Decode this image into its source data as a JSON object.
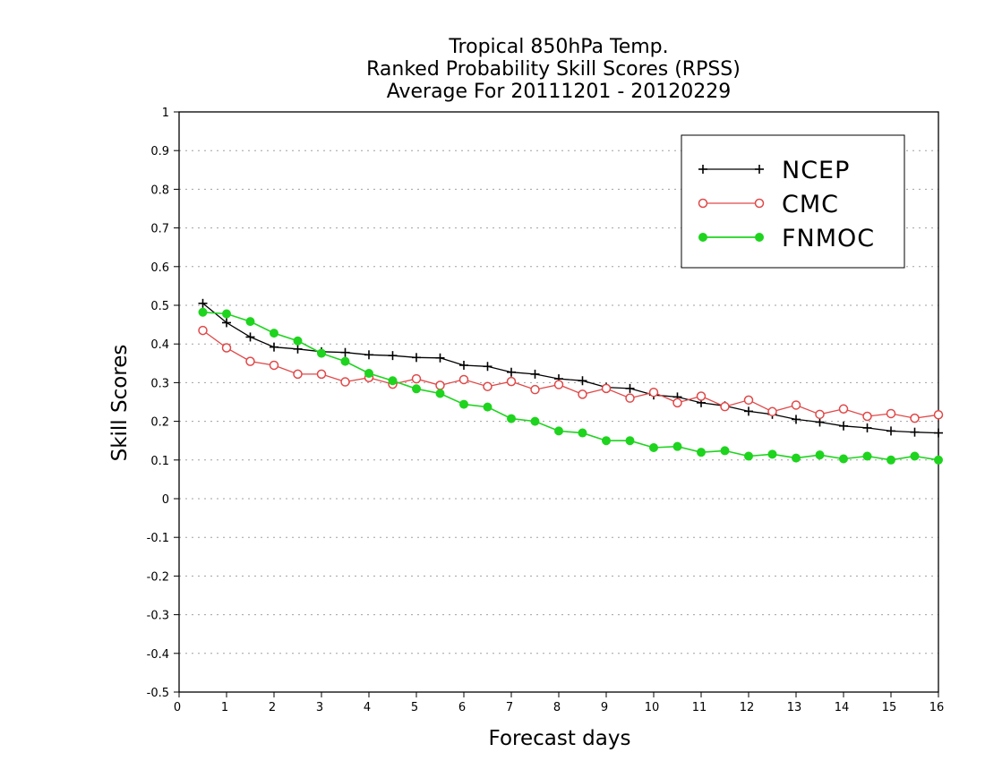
{
  "chart_data": {
    "type": "line",
    "title": [
      "Tropical 850hPa Temp.",
      "Ranked Probability Skill Scores (RPSS)",
      "Average For 20111201 - 20120229"
    ],
    "xlabel": "Forecast days",
    "ylabel": "Skill Scores",
    "xlim": [
      0,
      16
    ],
    "ylim": [
      -0.5,
      1
    ],
    "x_ticks": [
      0,
      1,
      2,
      3,
      4,
      5,
      6,
      7,
      8,
      9,
      10,
      11,
      12,
      13,
      14,
      15,
      16
    ],
    "y_ticks": [
      "1",
      "0.9",
      "0.8",
      "0.7",
      "0.6",
      "0.5",
      "0.4",
      "0.3",
      "0.2",
      "0.1",
      "0",
      "-0.1",
      "-0.2",
      "-0.3",
      "-0.4",
      "-0.5"
    ],
    "grid": true,
    "legend_position": "top-right",
    "x": [
      0.5,
      1,
      1.5,
      2,
      2.5,
      3,
      3.5,
      4,
      4.5,
      5,
      5.5,
      6,
      6.5,
      7,
      7.5,
      8,
      8.5,
      9,
      9.5,
      10,
      10.5,
      11,
      11.5,
      12,
      12.5,
      13,
      13.5,
      14,
      14.5,
      15,
      15.5,
      16
    ],
    "series": [
      {
        "name": "NCEP",
        "color": "#000000",
        "marker": "plus",
        "values": [
          0.505,
          0.455,
          0.418,
          0.392,
          0.387,
          0.38,
          0.378,
          0.372,
          0.37,
          0.365,
          0.364,
          0.345,
          0.342,
          0.327,
          0.322,
          0.31,
          0.305,
          0.288,
          0.285,
          0.268,
          0.263,
          0.248,
          0.24,
          0.226,
          0.218,
          0.205,
          0.198,
          0.188,
          0.183,
          0.175,
          0.172,
          0.17
        ]
      },
      {
        "name": "CMC",
        "color": "#e04848",
        "marker": "open-circle",
        "values": [
          0.435,
          0.39,
          0.355,
          0.345,
          0.322,
          0.322,
          0.302,
          0.313,
          0.296,
          0.31,
          0.293,
          0.308,
          0.29,
          0.303,
          0.282,
          0.295,
          0.27,
          0.285,
          0.26,
          0.275,
          0.248,
          0.265,
          0.238,
          0.255,
          0.225,
          0.242,
          0.218,
          0.232,
          0.213,
          0.22,
          0.208,
          0.217
        ]
      },
      {
        "name": "FNMOC",
        "color": "#1ed41e",
        "marker": "filled-circle",
        "values": [
          0.482,
          0.478,
          0.458,
          0.428,
          0.408,
          0.376,
          0.355,
          0.324,
          0.305,
          0.284,
          0.272,
          0.244,
          0.237,
          0.207,
          0.2,
          0.175,
          0.17,
          0.15,
          0.15,
          0.132,
          0.135,
          0.12,
          0.124,
          0.11,
          0.115,
          0.105,
          0.113,
          0.103,
          0.11,
          0.1,
          0.11,
          0.1
        ]
      }
    ]
  }
}
